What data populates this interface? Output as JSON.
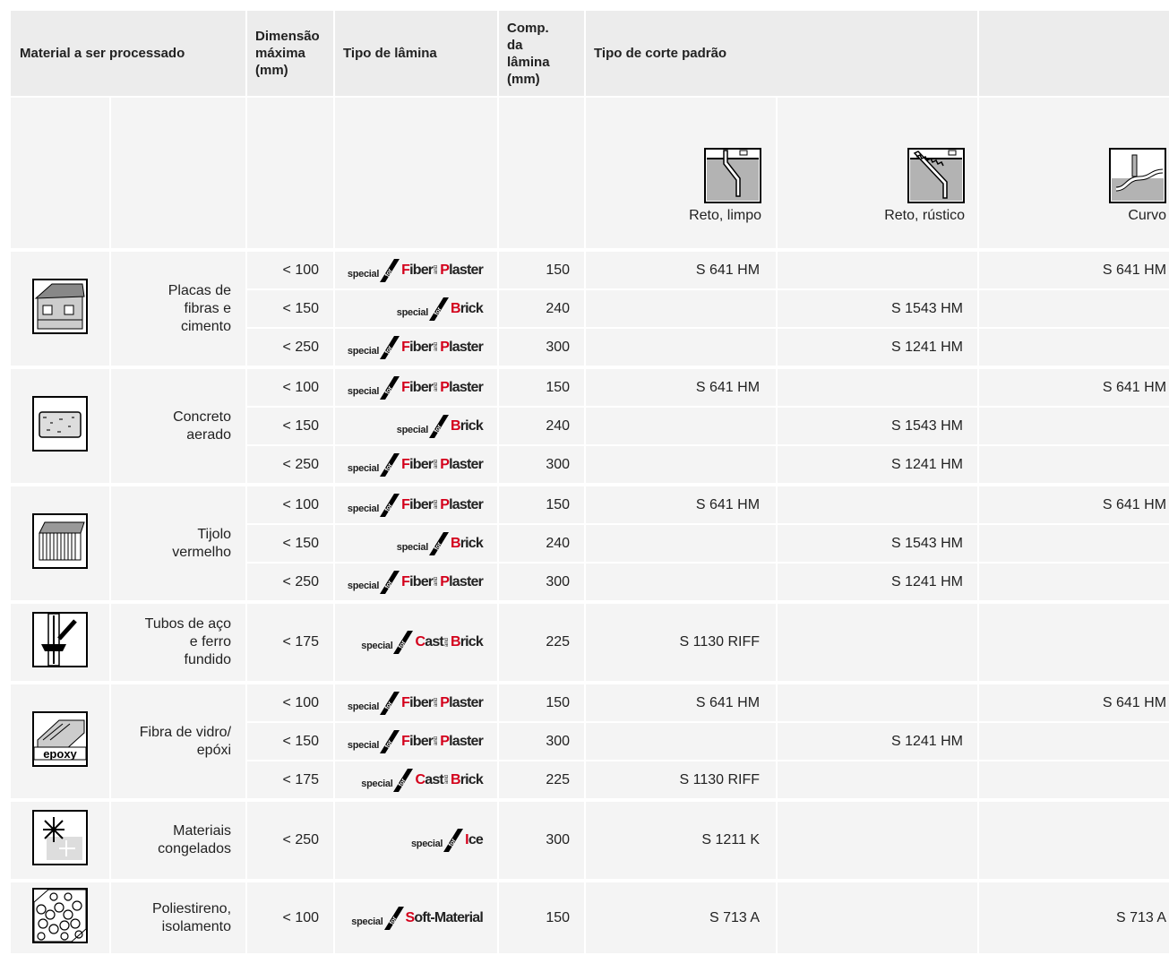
{
  "header": {
    "material": "Material a ser processado",
    "max_dim": "Dimensão\nmáxima\n(mm)",
    "blade_type": "Tipo de lâmina",
    "blade_length": "Comp.\nda\nlâmina\n(mm)",
    "cut_type": "Tipo de corte padrão"
  },
  "cut_columns": [
    "Reto, limpo",
    "Reto, rústico",
    "Curvo"
  ],
  "groups": [
    {
      "material": "Placas de\nfibras e\ncimento",
      "rows": [
        {
          "dim": "< 100",
          "blade": {
            "special": "special",
            "for": "for",
            "words": [
              "Fiber",
              "Plaster"
            ],
            "joiner": "and"
          },
          "length": "150",
          "cuts": [
            "S 641 HM",
            null,
            "S 641 HM"
          ]
        },
        {
          "dim": "< 150",
          "blade": {
            "special": "special",
            "for": "for",
            "words": [
              "Brick"
            ]
          },
          "length": "240",
          "cuts": [
            null,
            "S 1543 HM",
            null
          ]
        },
        {
          "dim": "< 250",
          "blade": {
            "special": "special",
            "for": "for",
            "words": [
              "Fiber",
              "Plaster"
            ],
            "joiner": "and"
          },
          "length": "300",
          "cuts": [
            null,
            "S 1241 HM",
            null
          ]
        }
      ]
    },
    {
      "material": "Concreto\naerado",
      "rows": [
        {
          "dim": "< 100",
          "blade": {
            "special": "special",
            "for": "for",
            "words": [
              "Fiber",
              "Plaster"
            ],
            "joiner": "and"
          },
          "length": "150",
          "cuts": [
            "S 641 HM",
            null,
            "S 641 HM"
          ]
        },
        {
          "dim": "< 150",
          "blade": {
            "special": "special",
            "for": "for",
            "words": [
              "Brick"
            ]
          },
          "length": "240",
          "cuts": [
            null,
            "S 1543 HM",
            null
          ]
        },
        {
          "dim": "< 250",
          "blade": {
            "special": "special",
            "for": "for",
            "words": [
              "Fiber",
              "Plaster"
            ],
            "joiner": "and"
          },
          "length": "300",
          "cuts": [
            null,
            "S 1241 HM",
            null
          ]
        }
      ]
    },
    {
      "material": "Tijolo\nvermelho",
      "rows": [
        {
          "dim": "< 100",
          "blade": {
            "special": "special",
            "for": "for",
            "words": [
              "Fiber",
              "Plaster"
            ],
            "joiner": "and"
          },
          "length": "150",
          "cuts": [
            "S 641 HM",
            null,
            "S 641 HM"
          ]
        },
        {
          "dim": "< 150",
          "blade": {
            "special": "special",
            "for": "for",
            "words": [
              "Brick"
            ]
          },
          "length": "240",
          "cuts": [
            null,
            "S 1543 HM",
            null
          ]
        },
        {
          "dim": "< 250",
          "blade": {
            "special": "special",
            "for": "for",
            "words": [
              "Fiber",
              "Plaster"
            ],
            "joiner": "and"
          },
          "length": "300",
          "cuts": [
            null,
            "S 1241 HM",
            null
          ]
        }
      ]
    },
    {
      "material": "Tubos de aço\ne ferro\nfundido",
      "rows": [
        {
          "dim": "< 175",
          "blade": {
            "special": "special",
            "for": "for",
            "words": [
              "Cast",
              "Brick"
            ],
            "joiner": "and"
          },
          "length": "225",
          "cuts": [
            "S 1130 RIFF",
            null,
            null
          ]
        }
      ]
    },
    {
      "material": "Fibra de vidro/\nepóxi",
      "icon_text": "epoxy",
      "rows": [
        {
          "dim": "< 100",
          "blade": {
            "special": "special",
            "for": "for",
            "words": [
              "Fiber",
              "Plaster"
            ],
            "joiner": "and"
          },
          "length": "150",
          "cuts": [
            "S 641 HM",
            null,
            "S 641 HM"
          ]
        },
        {
          "dim": "< 150",
          "blade": {
            "special": "special",
            "for": "for",
            "words": [
              "Fiber",
              "Plaster"
            ],
            "joiner": "and"
          },
          "length": "300",
          "cuts": [
            null,
            "S 1241 HM",
            null
          ]
        },
        {
          "dim": "< 175",
          "blade": {
            "special": "special",
            "for": "for",
            "words": [
              "Cast",
              "Brick"
            ],
            "joiner": "and"
          },
          "length": "225",
          "cuts": [
            "S 1130 RIFF",
            null,
            null
          ]
        }
      ]
    },
    {
      "material": "Materiais\ncongelados",
      "rows": [
        {
          "dim": "< 250",
          "blade": {
            "special": "special",
            "for": "for",
            "words": [
              "Ice"
            ]
          },
          "length": "300",
          "cuts": [
            "S 1211 K",
            null,
            null
          ]
        }
      ]
    },
    {
      "material": "Poliestireno,\nisolamento",
      "rows": [
        {
          "dim": "< 100",
          "blade": {
            "special": "special",
            "for": "for",
            "words": [
              "Soft-Material"
            ]
          },
          "length": "150",
          "cuts": [
            "S 713 A",
            null,
            "S 713 A"
          ]
        }
      ]
    }
  ]
}
